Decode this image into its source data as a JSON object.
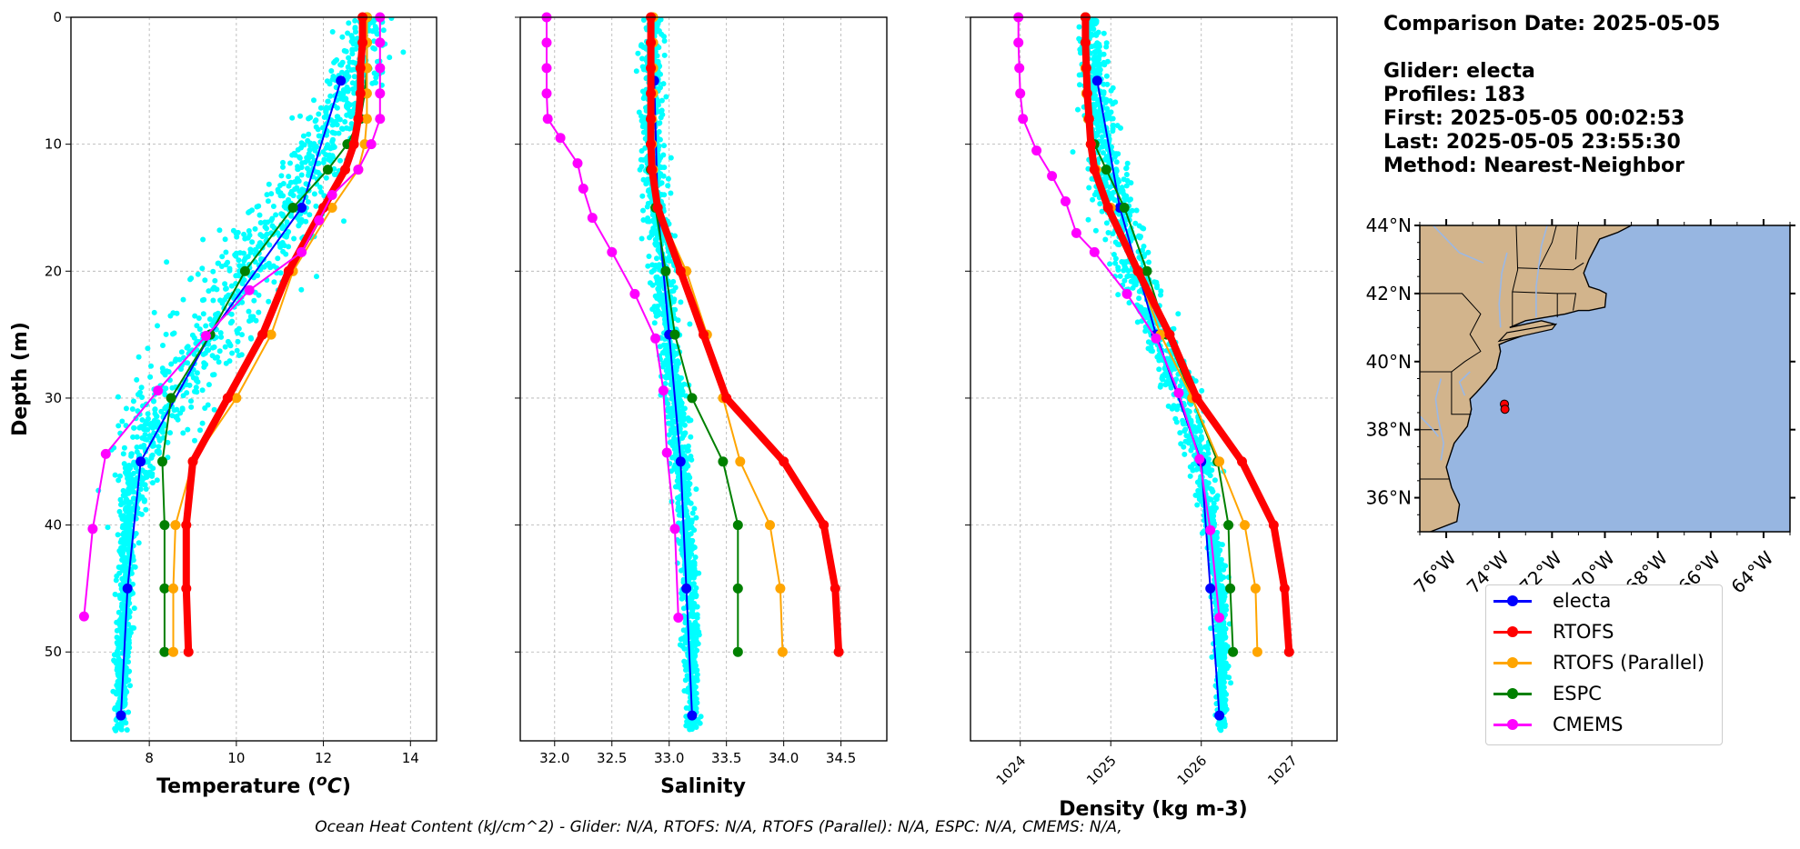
{
  "info": {
    "comparison_date": "Comparison Date: 2025-05-05",
    "glider": "Glider: electa",
    "profiles": "Profiles: 183",
    "first": "First: 2025-05-05 00:02:53",
    "last": "Last: 2025-05-05 23:55:30",
    "method": "Method: Nearest-Neighbor"
  },
  "footer": "Ocean Heat Content (kJ/cm^2) - Glider: N/A,  RTOFS: N/A,  RTOFS (Parallel): N/A,  ESPC: N/A,  CMEMS: N/A,",
  "colors": {
    "electa": "#0000ff",
    "RTOFS": "#ff0000",
    "RTOFS (Parallel)": "#ffa500",
    "ESPC": "#008000",
    "CMEMS": "#ff00ff",
    "glider_scatter": "#00ffff",
    "grid": "#b0b0b0",
    "land": "#d2b48c",
    "ocean": "#97b6e1"
  },
  "legend": [
    "electa",
    "RTOFS",
    "RTOFS (Parallel)",
    "ESPC",
    "CMEMS"
  ],
  "chart_data": [
    {
      "type": "line",
      "xlabel": "Temperature (°C)",
      "ylabel": "Depth (m)",
      "xlim": [
        6.2,
        14.6
      ],
      "ylim": [
        57,
        0
      ],
      "xticks": [
        8,
        10,
        12,
        14
      ],
      "yticks": [
        0,
        10,
        20,
        30,
        40,
        50
      ],
      "grid": true,
      "scatter": {
        "name": "glider observations",
        "profile": [
          [
            0,
            13.1
          ],
          [
            5,
            12.6
          ],
          [
            10,
            12.1
          ],
          [
            15,
            11.2
          ],
          [
            20,
            10.3
          ],
          [
            25,
            9.4
          ],
          [
            30,
            8.4
          ],
          [
            35,
            7.8
          ],
          [
            40,
            7.5
          ],
          [
            45,
            7.45
          ],
          [
            50,
            7.4
          ],
          [
            55,
            7.35
          ],
          [
            56,
            7.35
          ]
        ],
        "spread": [
          [
            0,
            0.6
          ],
          [
            10,
            0.8
          ],
          [
            20,
            1.2
          ],
          [
            30,
            1.0
          ],
          [
            35,
            0.6
          ],
          [
            40,
            0.25
          ],
          [
            56,
            0.15
          ]
        ]
      },
      "series": [
        {
          "name": "electa",
          "depth": [
            5,
            15,
            25,
            35,
            45,
            55
          ],
          "values": [
            12.4,
            11.5,
            9.4,
            7.8,
            7.5,
            7.35
          ]
        },
        {
          "name": "RTOFS",
          "depth": [
            0,
            2,
            4,
            6,
            8,
            10,
            12,
            15,
            20,
            25,
            30,
            35,
            40,
            45,
            50
          ],
          "values": [
            12.9,
            12.9,
            12.85,
            12.85,
            12.8,
            12.7,
            12.5,
            12.0,
            11.2,
            10.6,
            9.8,
            9.0,
            8.85,
            8.85,
            8.9
          ]
        },
        {
          "name": "RTOFS (Parallel)",
          "depth": [
            0,
            2,
            4,
            6,
            8,
            10,
            12,
            15,
            20,
            25,
            30,
            35,
            40,
            45,
            50
          ],
          "values": [
            13.0,
            13.0,
            13.0,
            13.0,
            13.0,
            12.95,
            12.8,
            12.2,
            11.3,
            10.8,
            10.0,
            9.0,
            8.6,
            8.55,
            8.55
          ]
        },
        {
          "name": "ESPC",
          "depth": [
            0,
            2,
            4,
            6,
            8,
            10,
            12,
            15,
            20,
            25,
            30,
            35,
            40,
            45,
            50
          ],
          "values": [
            13.0,
            13.0,
            13.0,
            12.95,
            12.85,
            12.55,
            12.1,
            11.3,
            10.2,
            9.4,
            8.5,
            8.3,
            8.35,
            8.35,
            8.35
          ]
        },
        {
          "name": "CMEMS",
          "depth": [
            0,
            2,
            4,
            6,
            8,
            10,
            12,
            14,
            16,
            18.5,
            21.5,
            25.1,
            29.4,
            34.4,
            40.3,
            47.2
          ],
          "values": [
            13.3,
            13.3,
            13.3,
            13.3,
            13.3,
            13.1,
            12.8,
            12.2,
            11.9,
            11.5,
            10.3,
            9.3,
            8.2,
            7.0,
            6.7,
            6.5
          ]
        }
      ]
    },
    {
      "type": "line",
      "xlabel": "Salinity",
      "xlim": [
        31.7,
        34.9
      ],
      "ylim": [
        57,
        0
      ],
      "xticks": [
        32.0,
        32.5,
        33.0,
        33.5,
        34.0,
        34.5
      ],
      "xtick_labels": [
        "32.0",
        "32.5",
        "33.0",
        "33.5",
        "34.0",
        "34.5"
      ],
      "grid": true,
      "scatter": {
        "name": "glider observations",
        "profile": [
          [
            0,
            32.85
          ],
          [
            10,
            32.85
          ],
          [
            15,
            32.88
          ],
          [
            20,
            32.95
          ],
          [
            25,
            33.0
          ],
          [
            30,
            33.05
          ],
          [
            35,
            33.1
          ],
          [
            40,
            33.15
          ],
          [
            45,
            33.18
          ],
          [
            50,
            33.2
          ],
          [
            56,
            33.2
          ]
        ],
        "spread": [
          [
            0,
            0.1
          ],
          [
            20,
            0.12
          ],
          [
            30,
            0.1
          ],
          [
            56,
            0.06
          ]
        ]
      },
      "series": [
        {
          "name": "electa",
          "depth": [
            5,
            15,
            25,
            35,
            45,
            55
          ],
          "values": [
            32.87,
            32.9,
            33.0,
            33.1,
            33.15,
            33.2
          ]
        },
        {
          "name": "RTOFS",
          "depth": [
            0,
            2,
            4,
            6,
            8,
            10,
            12,
            15,
            20,
            25,
            30,
            35,
            40,
            45,
            50
          ],
          "values": [
            32.84,
            32.84,
            32.84,
            32.84,
            32.84,
            32.84,
            32.85,
            32.9,
            33.1,
            33.3,
            33.5,
            34.0,
            34.35,
            34.45,
            34.48
          ]
        },
        {
          "name": "RTOFS (Parallel)",
          "depth": [
            0,
            2,
            4,
            6,
            8,
            10,
            12,
            15,
            20,
            25,
            30,
            35,
            40,
            45,
            50
          ],
          "values": [
            32.86,
            32.86,
            32.86,
            32.86,
            32.85,
            32.85,
            32.86,
            32.9,
            33.15,
            33.33,
            33.47,
            33.62,
            33.88,
            33.97,
            33.99
          ]
        },
        {
          "name": "ESPC",
          "depth": [
            0,
            2,
            4,
            6,
            8,
            10,
            12,
            15,
            20,
            25,
            30,
            35,
            40,
            45,
            50
          ],
          "values": [
            32.85,
            32.85,
            32.85,
            32.85,
            32.84,
            32.84,
            32.84,
            32.88,
            32.97,
            33.05,
            33.2,
            33.47,
            33.6,
            33.6,
            33.6
          ]
        },
        {
          "name": "CMEMS",
          "depth": [
            0,
            2,
            4,
            6,
            8,
            9.5,
            11.5,
            13.5,
            15.8,
            18.5,
            21.8,
            25.3,
            29.4,
            34.3,
            40.3,
            47.3
          ],
          "values": [
            31.93,
            31.93,
            31.93,
            31.93,
            31.94,
            32.05,
            32.2,
            32.25,
            32.33,
            32.5,
            32.7,
            32.88,
            32.95,
            32.98,
            33.05,
            33.08
          ]
        }
      ]
    },
    {
      "type": "line",
      "xlabel": "Density (kg m-3)",
      "xlim": [
        1023.45,
        1027.5
      ],
      "ylim": [
        57,
        0
      ],
      "xticks": [
        1024,
        1025,
        1026,
        1027
      ],
      "xtick_labels": [
        "1024",
        "1025",
        "1026",
        "1027"
      ],
      "grid": true,
      "scatter": {
        "name": "glider observations",
        "profile": [
          [
            0,
            1024.75
          ],
          [
            10,
            1024.9
          ],
          [
            20,
            1025.25
          ],
          [
            30,
            1025.8
          ],
          [
            35,
            1026.0
          ],
          [
            40,
            1026.1
          ],
          [
            45,
            1026.2
          ],
          [
            50,
            1026.22
          ],
          [
            56,
            1026.23
          ]
        ],
        "spread": [
          [
            0,
            0.15
          ],
          [
            15,
            0.25
          ],
          [
            30,
            0.2
          ],
          [
            40,
            0.1
          ],
          [
            56,
            0.06
          ]
        ]
      },
      "series": [
        {
          "name": "electa",
          "depth": [
            5,
            15,
            25,
            35,
            45,
            55
          ],
          "values": [
            1024.85,
            1025.1,
            1025.5,
            1026.0,
            1026.1,
            1026.2
          ]
        },
        {
          "name": "RTOFS",
          "depth": [
            0,
            2,
            4,
            6,
            8,
            10,
            12,
            15,
            20,
            25,
            30,
            35,
            40,
            45,
            50
          ],
          "values": [
            1024.72,
            1024.72,
            1024.73,
            1024.74,
            1024.76,
            1024.78,
            1024.82,
            1024.97,
            1025.3,
            1025.65,
            1025.95,
            1026.45,
            1026.8,
            1026.92,
            1026.97
          ]
        },
        {
          "name": "RTOFS (Parallel)",
          "depth": [
            0,
            2,
            4,
            6,
            8,
            10,
            12,
            15,
            20,
            25,
            30,
            35,
            40,
            45,
            50
          ],
          "values": [
            1024.72,
            1024.72,
            1024.72,
            1024.73,
            1024.75,
            1024.78,
            1024.84,
            1025.0,
            1025.3,
            1025.55,
            1025.9,
            1026.2,
            1026.48,
            1026.6,
            1026.62
          ]
        },
        {
          "name": "ESPC",
          "depth": [
            0,
            2,
            4,
            6,
            8,
            10,
            12,
            15,
            20,
            25,
            30,
            35,
            40,
            45,
            50
          ],
          "values": [
            1024.72,
            1024.72,
            1024.72,
            1024.73,
            1024.75,
            1024.82,
            1024.95,
            1025.15,
            1025.4,
            1025.62,
            1025.9,
            1026.18,
            1026.3,
            1026.32,
            1026.35
          ]
        },
        {
          "name": "CMEMS",
          "depth": [
            0,
            2,
            4,
            6,
            8,
            10.5,
            12.5,
            14.5,
            17,
            18.5,
            21.8,
            25.3,
            29.6,
            34.8,
            40.4,
            47.3
          ],
          "values": [
            1023.98,
            1023.98,
            1023.99,
            1024.0,
            1024.03,
            1024.18,
            1024.35,
            1024.5,
            1024.62,
            1024.82,
            1025.18,
            1025.5,
            1025.75,
            1025.98,
            1026.1,
            1026.2
          ]
        }
      ]
    }
  ],
  "map": {
    "lat_ticks": [
      "36°N",
      "38°N",
      "40°N",
      "42°N",
      "44°N"
    ],
    "lon_ticks": [
      "76°W",
      "74°W",
      "72°W",
      "70°W",
      "68°W",
      "66°W",
      "64°W"
    ],
    "lon_range": [
      -77,
      -63
    ],
    "lat_range": [
      35,
      44
    ],
    "glider_track": [
      [
        -73.8,
        38.75
      ],
      [
        -73.78,
        38.6
      ]
    ]
  }
}
